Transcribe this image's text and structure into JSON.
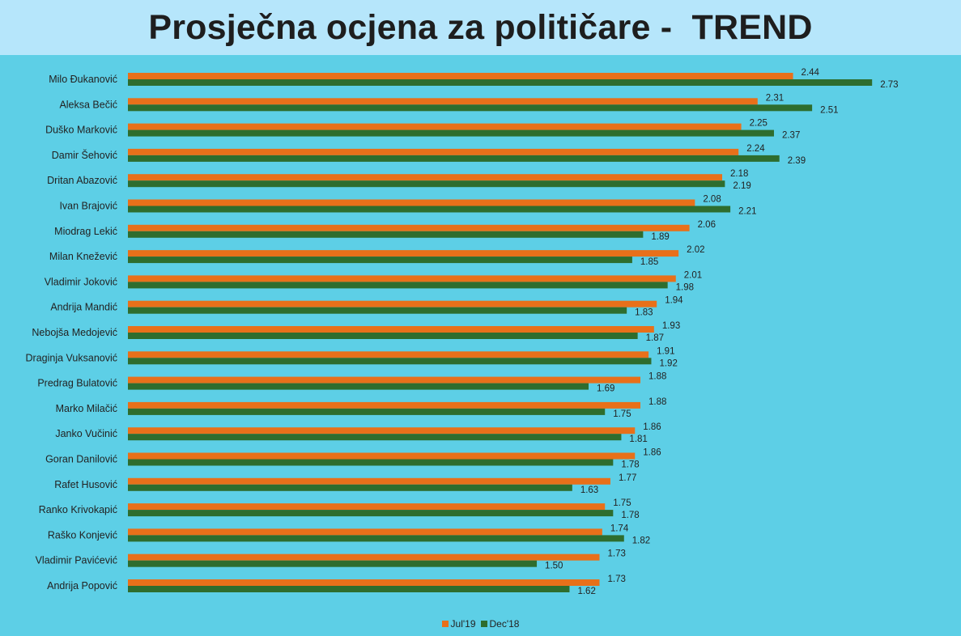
{
  "title": "Prosječna ocjena za političare -  TREND",
  "chart_data": {
    "type": "bar",
    "orientation": "horizontal",
    "title": "Prosječna ocjena za političare -  TREND",
    "categories": [
      "Milo Đukanović",
      "Aleksa Bečić",
      "Duško Marković",
      "Damir Šehović",
      "Dritan Abazović",
      "Ivan Brajović",
      "Miodrag Lekić",
      "Milan Knežević",
      "Vladimir Joković",
      "Andrija Mandić",
      "Nebojša Medojević",
      "Draginja Vuksanović",
      "Predrag Bulatović",
      "Marko Milačić",
      "Janko Vučinić",
      "Goran Danilović",
      "Rafet Husović",
      "Ranko Krivokapić",
      "Raško Konjević",
      "Vladimir Pavićević",
      "Andrija Popović"
    ],
    "series": [
      {
        "name": "Jul'19",
        "color": "#e8701a",
        "values": [
          2.44,
          2.31,
          2.25,
          2.24,
          2.18,
          2.08,
          2.06,
          2.02,
          2.01,
          1.94,
          1.93,
          1.91,
          1.88,
          1.88,
          1.86,
          1.86,
          1.77,
          1.75,
          1.74,
          1.73,
          1.73
        ],
        "labels": [
          "2.44",
          "2.31",
          "2.25",
          "2.24",
          "2.18",
          "2.08",
          "2.06",
          "2.02",
          "2.01",
          "1.94",
          "1.93",
          "1.91",
          "1.88",
          "1.88",
          "1.86",
          "1.86",
          "1.77",
          "1.75",
          "1.74",
          "1.73",
          "1.73"
        ]
      },
      {
        "name": "Dec'18",
        "color": "#2e6d2e",
        "values": [
          2.73,
          2.51,
          2.37,
          2.39,
          2.19,
          2.21,
          1.89,
          1.85,
          1.98,
          1.83,
          1.87,
          1.92,
          1.69,
          1.75,
          1.81,
          1.78,
          1.63,
          1.78,
          1.82,
          1.5,
          1.62
        ],
        "labels": [
          "2.73",
          "2.51",
          "2.37",
          "2.39",
          "2.19",
          "2.21",
          "1.89",
          "1.85",
          "1.98",
          "1.83",
          "1.87",
          "1.92",
          "1.69",
          "1.75",
          "1.81",
          "1.78",
          "1.63",
          "1.78",
          "1.82",
          "1.50",
          "1.62"
        ]
      }
    ],
    "xlim": [
      0,
      3
    ],
    "grid": false,
    "legend": "bottom"
  }
}
